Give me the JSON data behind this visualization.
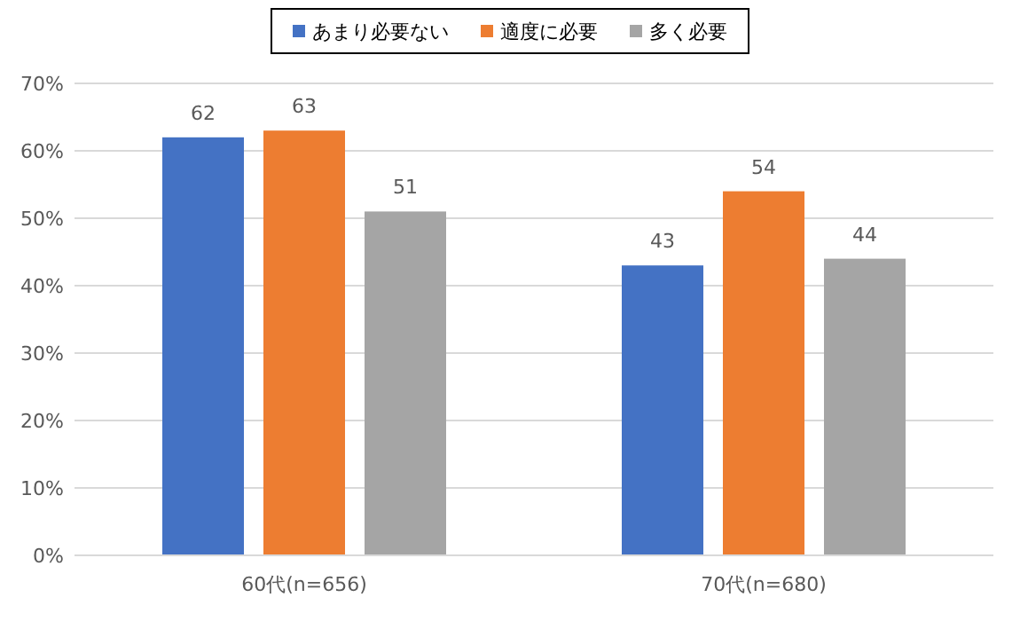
{
  "chart_data": {
    "type": "bar",
    "categories": [
      "60代(n=656)",
      "70代(n=680)"
    ],
    "series": [
      {
        "name": "あまり必要ない",
        "color": "#4472c4",
        "values": [
          62,
          43
        ]
      },
      {
        "name": "適度に必要",
        "color": "#ed7d31",
        "values": [
          63,
          54
        ]
      },
      {
        "name": "多く必要",
        "color": "#a5a5a5",
        "values": [
          51,
          44
        ]
      }
    ],
    "ylim": [
      0,
      70
    ],
    "yticks": [
      {
        "value": 0,
        "label": "0%"
      },
      {
        "value": 10,
        "label": "10%"
      },
      {
        "value": 20,
        "label": "20%"
      },
      {
        "value": 30,
        "label": "30%"
      },
      {
        "value": 40,
        "label": "40%"
      },
      {
        "value": 50,
        "label": "50%"
      },
      {
        "value": 60,
        "label": "60%"
      },
      {
        "value": 70,
        "label": "70%"
      }
    ],
    "grid": "y",
    "legend": "top",
    "data_labels": true
  }
}
